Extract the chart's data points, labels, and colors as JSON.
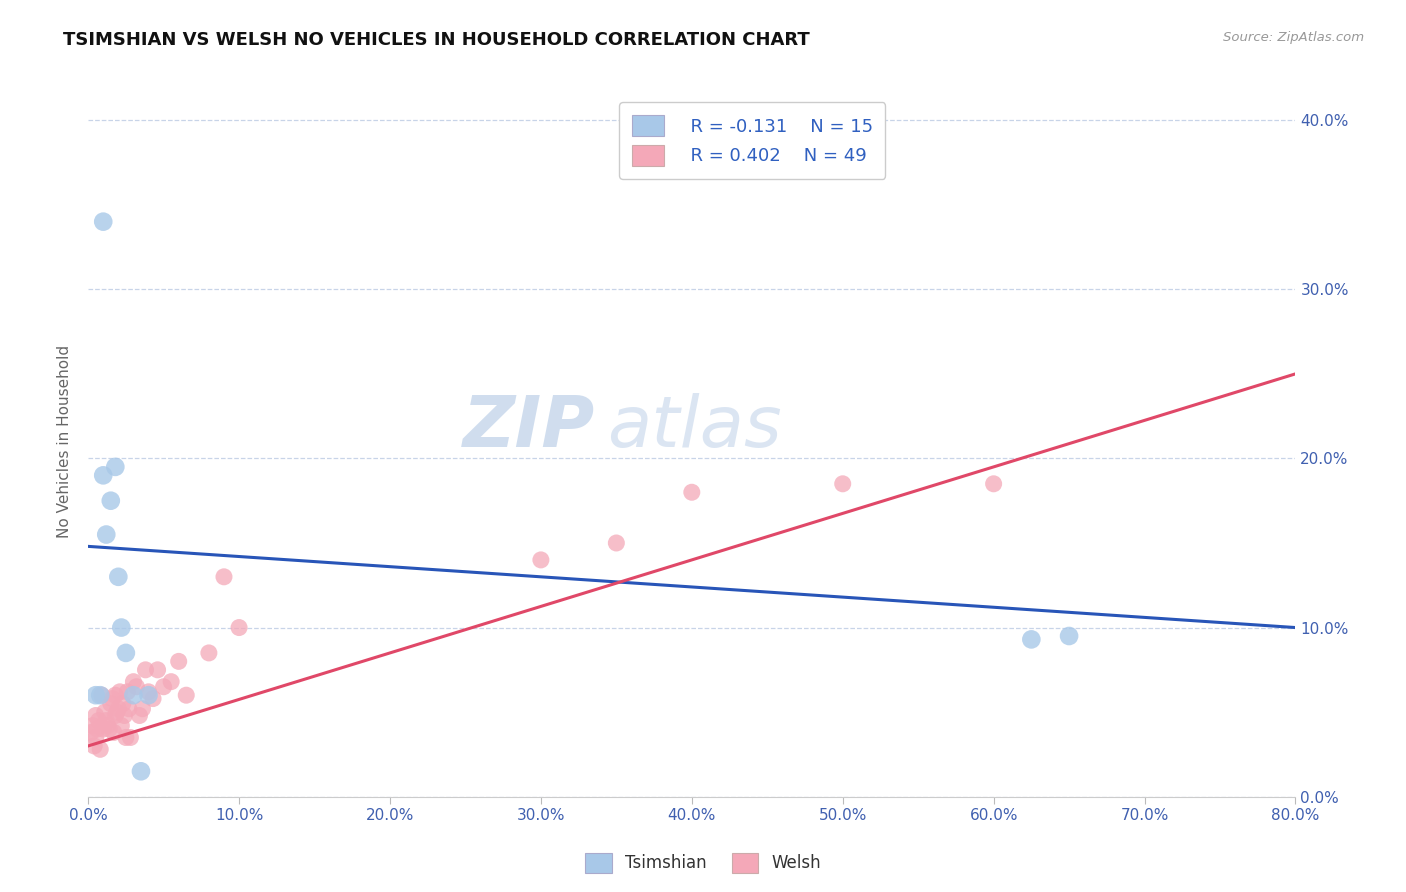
{
  "title": "TSIMSHIAN VS WELSH NO VEHICLES IN HOUSEHOLD CORRELATION CHART",
  "source": "Source: ZipAtlas.com",
  "ylabel": "No Vehicles in Household",
  "xmin": 0.0,
  "xmax": 0.8,
  "ymin": 0.0,
  "ymax": 0.42,
  "tsimshian_color": "#a8c8e8",
  "welsh_color": "#f4a8b8",
  "tsimshian_line_color": "#2855b8",
  "welsh_line_color": "#e04868",
  "R_tsimshian": -0.131,
  "N_tsimshian": 15,
  "R_welsh": 0.402,
  "N_welsh": 49,
  "watermark_zip": "ZIP",
  "watermark_atlas": "atlas",
  "background_color": "#ffffff",
  "grid_color": "#c8d4e8",
  "tsimshian_x": [
    0.005,
    0.008,
    0.01,
    0.012,
    0.015,
    0.018,
    0.02,
    0.022,
    0.025,
    0.03,
    0.035,
    0.04,
    0.01,
    0.625,
    0.65
  ],
  "tsimshian_y": [
    0.06,
    0.06,
    0.19,
    0.155,
    0.175,
    0.195,
    0.13,
    0.1,
    0.085,
    0.06,
    0.015,
    0.06,
    0.34,
    0.093,
    0.095
  ],
  "welsh_x": [
    0.002,
    0.003,
    0.004,
    0.005,
    0.005,
    0.006,
    0.007,
    0.008,
    0.009,
    0.01,
    0.011,
    0.012,
    0.013,
    0.014,
    0.015,
    0.016,
    0.017,
    0.018,
    0.018,
    0.019,
    0.02,
    0.021,
    0.022,
    0.023,
    0.024,
    0.025,
    0.026,
    0.027,
    0.028,
    0.03,
    0.032,
    0.034,
    0.036,
    0.038,
    0.04,
    0.043,
    0.046,
    0.05,
    0.055,
    0.06,
    0.065,
    0.08,
    0.09,
    0.1,
    0.3,
    0.35,
    0.4,
    0.5,
    0.6
  ],
  "welsh_y": [
    0.038,
    0.042,
    0.03,
    0.048,
    0.035,
    0.04,
    0.045,
    0.028,
    0.06,
    0.04,
    0.05,
    0.045,
    0.042,
    0.04,
    0.055,
    0.058,
    0.038,
    0.06,
    0.048,
    0.05,
    0.052,
    0.062,
    0.042,
    0.055,
    0.048,
    0.035,
    0.062,
    0.052,
    0.035,
    0.068,
    0.065,
    0.048,
    0.052,
    0.075,
    0.062,
    0.058,
    0.075,
    0.065,
    0.068,
    0.08,
    0.06,
    0.085,
    0.13,
    0.1,
    0.14,
    0.15,
    0.18,
    0.185,
    0.185
  ],
  "tsimshian_line_x0": 0.0,
  "tsimshian_line_y0": 0.148,
  "tsimshian_line_x1": 0.8,
  "tsimshian_line_y1": 0.1,
  "welsh_line_x0": 0.0,
  "welsh_line_y0": 0.03,
  "welsh_line_x1": 0.8,
  "welsh_line_y1": 0.25
}
